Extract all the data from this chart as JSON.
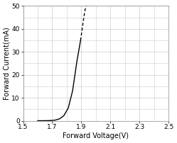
{
  "title": "",
  "xlabel": "Forward Voltage(V)",
  "ylabel": "Forward Current(mA)",
  "xlim": [
    1.5,
    2.5
  ],
  "ylim": [
    0,
    50
  ],
  "xticks": [
    1.5,
    1.7,
    1.9,
    2.1,
    2.3,
    2.5
  ],
  "yticks": [
    0,
    10,
    20,
    30,
    40,
    50
  ],
  "solid_curve": {
    "v": [
      1.6,
      1.63,
      1.66,
      1.69,
      1.72,
      1.75,
      1.78,
      1.81,
      1.84,
      1.87,
      1.895
    ],
    "i": [
      0.0,
      0.0,
      0.02,
      0.08,
      0.25,
      0.8,
      2.2,
      5.5,
      13.0,
      26.0,
      35.0
    ]
  },
  "dashed_curve": {
    "v": [
      1.895,
      1.905,
      1.915,
      1.925,
      1.935
    ],
    "i": [
      35.0,
      39.5,
      44.0,
      48.0,
      50.5
    ]
  },
  "line_color": "#000000",
  "background_color": "#ffffff",
  "grid_color": "#cccccc",
  "figsize": [
    2.49,
    2.02
  ],
  "dpi": 100
}
